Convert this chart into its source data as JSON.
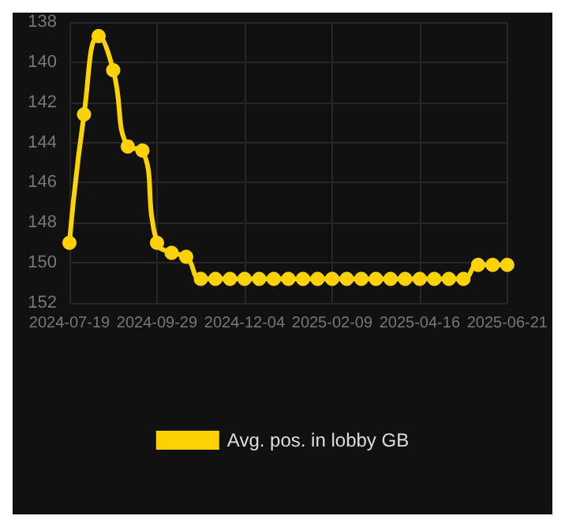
{
  "chart_data": {
    "type": "line",
    "categories": [
      "2024-07-19",
      null,
      null,
      null,
      null,
      null,
      "2024-09-29",
      null,
      null,
      null,
      null,
      null,
      "2024-12-04",
      null,
      null,
      null,
      null,
      null,
      "2025-02-09",
      null,
      null,
      null,
      null,
      null,
      "2025-04-16",
      null,
      null,
      null,
      null,
      null,
      "2025-06-21"
    ],
    "series": [
      {
        "name": "Avg. pos. in lobby GB",
        "color": "#ffd200",
        "values": [
          149,
          142.6,
          138.7,
          140.4,
          144.2,
          144.4,
          149,
          149.5,
          149.7,
          150.8,
          150.8,
          150.8,
          150.8,
          150.8,
          150.8,
          150.8,
          150.8,
          150.8,
          150.8,
          150.8,
          150.8,
          150.8,
          150.8,
          150.8,
          150.8,
          150.8,
          150.8,
          150.8,
          150.1,
          150.1,
          150.1
        ]
      }
    ],
    "ylim": [
      152,
      138
    ],
    "yticks": [
      138,
      140,
      142,
      144,
      146,
      148,
      150,
      152
    ],
    "grid": true,
    "legend": "bottom",
    "marker": "circle",
    "line_style": "solid"
  }
}
